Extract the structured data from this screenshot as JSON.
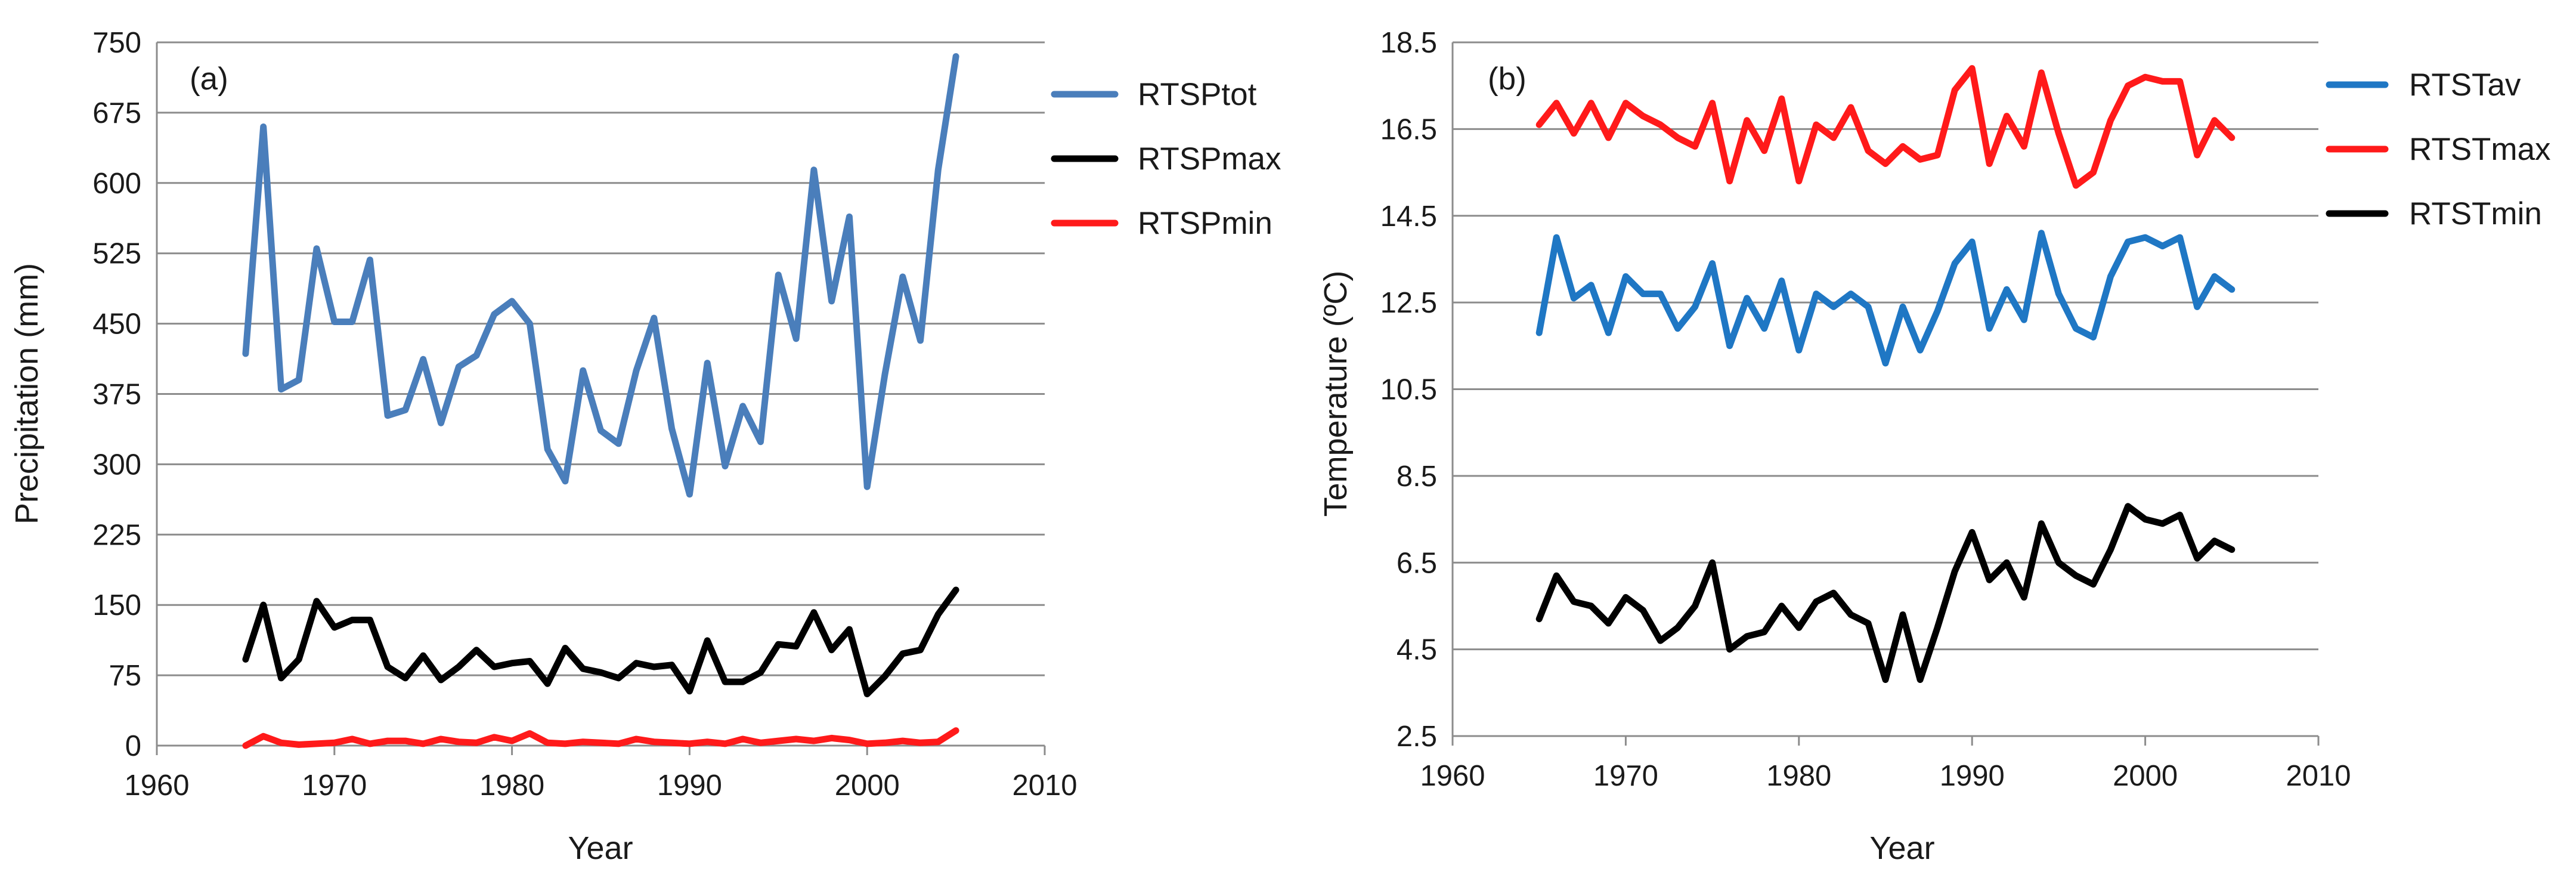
{
  "colors": {
    "blue": "#4a7ebb",
    "black": "#000000",
    "red": "#ff1a1a",
    "blue2": "#1f77c4"
  },
  "chart_data": [
    {
      "type": "line",
      "panel_label": "(a)",
      "title": "",
      "xlabel": "Year",
      "ylabel": "Precipitation (mm)",
      "xlim": [
        1960,
        2010
      ],
      "ylim": [
        0,
        750
      ],
      "xticks": [
        "1960",
        "1970",
        "1980",
        "1990",
        "2000",
        "2010"
      ],
      "yticks": [
        "0",
        "75",
        "150",
        "225",
        "300",
        "375",
        "450",
        "525",
        "600",
        "675",
        "750"
      ],
      "grid": true,
      "legend_position": "right",
      "x": [
        1965,
        1966,
        1967,
        1968,
        1969,
        1970,
        1971,
        1972,
        1973,
        1974,
        1975,
        1976,
        1977,
        1978,
        1979,
        1980,
        1981,
        1982,
        1983,
        1984,
        1985,
        1986,
        1987,
        1988,
        1989,
        1990,
        1991,
        1992,
        1993,
        1994,
        1995,
        1996,
        1997,
        1998,
        1999,
        2000,
        2001,
        2002,
        2003,
        2004,
        2005
      ],
      "series": [
        {
          "name": "RTSPtot",
          "color": "#4a7ebb",
          "values": [
            418,
            660,
            380,
            390,
            530,
            452,
            452,
            518,
            352,
            358,
            412,
            344,
            404,
            416,
            460,
            474,
            450,
            316,
            282,
            400,
            336,
            322,
            400,
            456,
            338,
            268,
            408,
            298,
            362,
            324,
            502,
            434,
            614,
            474,
            564,
            276,
            396,
            500,
            432,
            614,
            735
          ]
        },
        {
          "name": "RTSPmax",
          "color": "#000000",
          "values": [
            92,
            150,
            72,
            92,
            154,
            126,
            134,
            134,
            84,
            72,
            96,
            70,
            84,
            102,
            84,
            88,
            90,
            66,
            104,
            82,
            78,
            72,
            88,
            84,
            86,
            58,
            112,
            68,
            68,
            78,
            108,
            106,
            142,
            102,
            124,
            55,
            74,
            98,
            102,
            140,
            166
          ]
        },
        {
          "name": "RTSPmin",
          "color": "#ff1a1a",
          "values": [
            0,
            10,
            3,
            1,
            2,
            3,
            7,
            2,
            5,
            5,
            2,
            7,
            4,
            3,
            9,
            5,
            13,
            3,
            2,
            4,
            3,
            2,
            7,
            4,
            3,
            2,
            4,
            2,
            7,
            3,
            5,
            7,
            5,
            8,
            6,
            2,
            3,
            5,
            3,
            4,
            16
          ]
        }
      ]
    },
    {
      "type": "line",
      "panel_label": "(b)",
      "title": "",
      "xlabel": "Year",
      "ylabel": "Temperature (ºC)",
      "xlim": [
        1960,
        2010
      ],
      "ylim": [
        2.5,
        18.5
      ],
      "xticks": [
        "1960",
        "1970",
        "1980",
        "1990",
        "2000",
        "2010"
      ],
      "yticks": [
        "2.5",
        "4.5",
        "6.5",
        "8.5",
        "10.5",
        "12.5",
        "14.5",
        "16.5",
        "18.5"
      ],
      "grid": true,
      "legend_position": "right",
      "x": [
        1965,
        1966,
        1967,
        1968,
        1969,
        1970,
        1971,
        1972,
        1973,
        1974,
        1975,
        1976,
        1977,
        1978,
        1979,
        1980,
        1981,
        1982,
        1983,
        1984,
        1985,
        1986,
        1987,
        1988,
        1989,
        1990,
        1991,
        1992,
        1993,
        1994,
        1995,
        1996,
        1997,
        1998,
        1999,
        2000,
        2001,
        2002,
        2003,
        2004,
        2005
      ],
      "series": [
        {
          "name": "RTSTav",
          "color": "#1f77c4",
          "values": [
            11.8,
            14.0,
            12.6,
            12.9,
            11.8,
            13.1,
            12.7,
            12.7,
            11.9,
            12.4,
            13.4,
            11.5,
            12.6,
            11.9,
            13.0,
            11.4,
            12.7,
            12.4,
            12.7,
            12.4,
            11.1,
            12.4,
            11.4,
            12.3,
            13.4,
            13.9,
            11.9,
            12.8,
            12.1,
            14.1,
            12.7,
            11.9,
            11.7,
            13.1,
            13.9,
            14.0,
            13.8,
            14.0,
            12.4,
            13.1,
            12.8
          ]
        },
        {
          "name": "RTSTmax",
          "color": "#ff1a1a",
          "values": [
            16.6,
            17.1,
            16.4,
            17.1,
            16.3,
            17.1,
            16.8,
            16.6,
            16.3,
            16.1,
            17.1,
            15.3,
            16.7,
            16.0,
            17.2,
            15.3,
            16.6,
            16.3,
            17.0,
            16.0,
            15.7,
            16.1,
            15.8,
            15.9,
            17.4,
            17.9,
            15.7,
            16.8,
            16.1,
            17.8,
            16.4,
            15.2,
            15.5,
            16.7,
            17.5,
            17.7,
            17.6,
            17.6,
            15.9,
            16.7,
            16.3
          ]
        },
        {
          "name": "RTSTmin",
          "color": "#000000",
          "values": [
            5.2,
            6.2,
            5.6,
            5.5,
            5.1,
            5.7,
            5.4,
            4.7,
            5.0,
            5.5,
            6.5,
            4.5,
            4.8,
            4.9,
            5.5,
            5.0,
            5.6,
            5.8,
            5.3,
            5.1,
            3.8,
            5.3,
            3.8,
            5.0,
            6.3,
            7.2,
            6.1,
            6.5,
            5.7,
            7.4,
            6.5,
            6.2,
            6.0,
            6.8,
            7.8,
            7.5,
            7.4,
            7.6,
            6.6,
            7.0,
            6.8
          ]
        }
      ]
    }
  ]
}
